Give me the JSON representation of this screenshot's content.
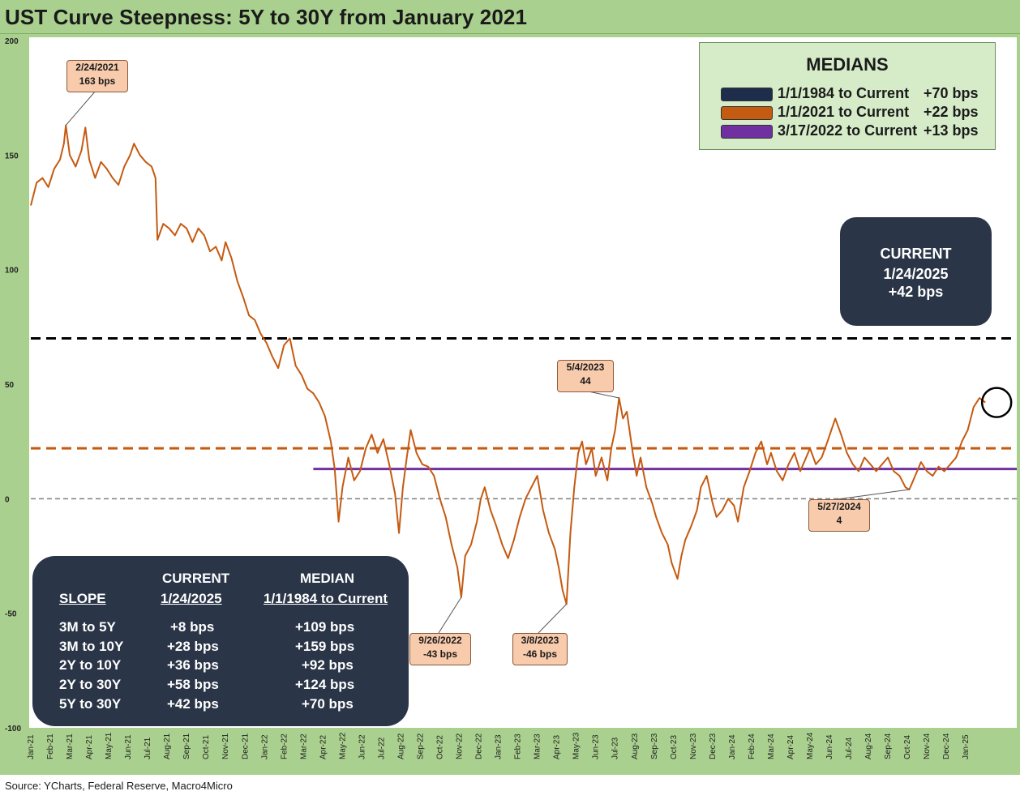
{
  "title": "UST Curve Steepness: 5Y to 30Y from January 2021",
  "source": "Source: YCharts, Federal Reserve, Macro4Micro",
  "colors": {
    "series": "#c55a11",
    "median_1984": "#000000",
    "median_2021": "#c55a11",
    "median_2022": "#7030a0",
    "zero_line": "#7f7f7f",
    "panel_green": "#a9d08e",
    "navy_box": "#2a3547",
    "callout_fill": "#f8cbad"
  },
  "legend": {
    "title": "MEDIANS",
    "items": [
      {
        "label": "1/1/1984 to Current",
        "value": "+70 bps",
        "color": "#1f2d4d"
      },
      {
        "label": "1/1/2021 to Current",
        "value": "+22 bps",
        "color": "#c55a11"
      },
      {
        "label": "3/17/2022 to Current",
        "value": "+13 bps",
        "color": "#7030a0"
      }
    ]
  },
  "current_box": {
    "line1": "CURRENT",
    "line2": "1/24/2025",
    "line3": "+42 bps"
  },
  "slope_table": {
    "header_slope": "SLOPE",
    "header_current_1": "CURRENT",
    "header_current_2": "1/24/2025",
    "header_median_1": "MEDIAN",
    "header_median_2": "1/1/1984 to Current",
    "rows": [
      {
        "slope": "3M to 5Y",
        "current": "+8  bps",
        "median": "+109 bps"
      },
      {
        "slope": "3M to 10Y",
        "current": "+28 bps",
        "median": "+159 bps"
      },
      {
        "slope": "2Y to 10Y",
        "current": "+36 bps",
        "median": "+92 bps"
      },
      {
        "slope": "2Y to 30Y",
        "current": "+58 bps",
        "median": "+124 bps"
      },
      {
        "slope": "5Y to 30Y",
        "current": "+42 bps",
        "median": "+70 bps"
      }
    ]
  },
  "callouts": [
    {
      "date": "2/24/2021",
      "value": "163 bps"
    },
    {
      "date": "5/4/2023",
      "value": "44"
    },
    {
      "date": "9/26/2022",
      "value": "-43 bps"
    },
    {
      "date": "3/8/2023",
      "value": "-46 bps"
    },
    {
      "date": "5/27/2024",
      "value": "4"
    }
  ],
  "chart_data": {
    "type": "line",
    "title": "UST Curve Steepness: 5Y to 30Y from January 2021",
    "ylabel": "bps",
    "ylim": [
      -100,
      200
    ],
    "yticks": [
      -100,
      -50,
      0,
      50,
      100,
      150,
      200
    ],
    "xlim": [
      0,
      49.2
    ],
    "x_unit": "months since Jan-2021",
    "categories": [
      "Jan-21",
      "Feb-21",
      "Mar-21",
      "Apr-21",
      "May-21",
      "Jun-21",
      "Jul-21",
      "Aug-21",
      "Sep-21",
      "Oct-21",
      "Nov-21",
      "Dec-21",
      "Jan-22",
      "Feb-22",
      "Mar-22",
      "Apr-22",
      "May-22",
      "Jun-22",
      "Jul-22",
      "Aug-22",
      "Sep-22",
      "Oct-22",
      "Nov-22",
      "Dec-22",
      "Jan-23",
      "Feb-23",
      "Mar-23",
      "Apr-23",
      "May-23",
      "Jun-23",
      "Jul-23",
      "Aug-23",
      "Sep-23",
      "Oct-23",
      "Nov-23",
      "Dec-23",
      "Jan-24",
      "Feb-24",
      "Mar-24",
      "Apr-24",
      "May-24",
      "Jun-24",
      "Jul-24",
      "Aug-24",
      "Sep-24",
      "Oct-24",
      "Nov-24",
      "Dec-24",
      "Jan-25"
    ],
    "reference_lines": [
      {
        "name": "Median 1/1/1984 to Current",
        "y": 70,
        "style": "dashed"
      },
      {
        "name": "Median 1/1/2021 to Current",
        "y": 22,
        "style": "dashed"
      },
      {
        "name": "Median 3/17/2022 to Current",
        "y": 13,
        "style": "solid",
        "x_start": 14.5
      },
      {
        "name": "Zero",
        "y": 0,
        "style": "dashed"
      }
    ],
    "series": [
      {
        "name": "5Y to 30Y spread (bps)",
        "points": [
          [
            0.0,
            128
          ],
          [
            0.3,
            138
          ],
          [
            0.6,
            140
          ],
          [
            0.9,
            136
          ],
          [
            1.2,
            144
          ],
          [
            1.5,
            148
          ],
          [
            1.7,
            155
          ],
          [
            1.8,
            163
          ],
          [
            2.0,
            150
          ],
          [
            2.3,
            145
          ],
          [
            2.6,
            152
          ],
          [
            2.8,
            162
          ],
          [
            3.0,
            148
          ],
          [
            3.3,
            140
          ],
          [
            3.6,
            147
          ],
          [
            3.9,
            144
          ],
          [
            4.2,
            140
          ],
          [
            4.5,
            137
          ],
          [
            4.8,
            145
          ],
          [
            5.1,
            150
          ],
          [
            5.3,
            155
          ],
          [
            5.6,
            150
          ],
          [
            5.9,
            147
          ],
          [
            6.2,
            145
          ],
          [
            6.4,
            140
          ],
          [
            6.5,
            113
          ],
          [
            6.8,
            120
          ],
          [
            7.1,
            118
          ],
          [
            7.4,
            115
          ],
          [
            7.7,
            120
          ],
          [
            8.0,
            118
          ],
          [
            8.3,
            112
          ],
          [
            8.6,
            118
          ],
          [
            8.9,
            115
          ],
          [
            9.2,
            108
          ],
          [
            9.5,
            110
          ],
          [
            9.8,
            104
          ],
          [
            10.0,
            112
          ],
          [
            10.3,
            105
          ],
          [
            10.6,
            95
          ],
          [
            10.9,
            88
          ],
          [
            11.2,
            80
          ],
          [
            11.5,
            78
          ],
          [
            11.8,
            72
          ],
          [
            12.1,
            68
          ],
          [
            12.4,
            62
          ],
          [
            12.7,
            57
          ],
          [
            13.0,
            67
          ],
          [
            13.3,
            70
          ],
          [
            13.6,
            58
          ],
          [
            13.9,
            54
          ],
          [
            14.2,
            48
          ],
          [
            14.5,
            46
          ],
          [
            14.8,
            42
          ],
          [
            15.1,
            36
          ],
          [
            15.4,
            25
          ],
          [
            15.6,
            13
          ],
          [
            15.8,
            -10
          ],
          [
            16.0,
            5
          ],
          [
            16.3,
            18
          ],
          [
            16.6,
            8
          ],
          [
            16.9,
            12
          ],
          [
            17.2,
            22
          ],
          [
            17.5,
            28
          ],
          [
            17.8,
            20
          ],
          [
            18.1,
            26
          ],
          [
            18.4,
            15
          ],
          [
            18.7,
            2
          ],
          [
            18.9,
            -15
          ],
          [
            19.1,
            5
          ],
          [
            19.3,
            18
          ],
          [
            19.5,
            30
          ],
          [
            19.8,
            20
          ],
          [
            20.1,
            15
          ],
          [
            20.4,
            14
          ],
          [
            20.7,
            10
          ],
          [
            21.0,
            0
          ],
          [
            21.3,
            -8
          ],
          [
            21.6,
            -20
          ],
          [
            21.9,
            -30
          ],
          [
            22.1,
            -43
          ],
          [
            22.3,
            -25
          ],
          [
            22.6,
            -20
          ],
          [
            22.9,
            -10
          ],
          [
            23.1,
            0
          ],
          [
            23.3,
            5
          ],
          [
            23.6,
            -5
          ],
          [
            23.9,
            -12
          ],
          [
            24.2,
            -20
          ],
          [
            24.5,
            -26
          ],
          [
            24.8,
            -18
          ],
          [
            25.1,
            -8
          ],
          [
            25.4,
            0
          ],
          [
            25.7,
            5
          ],
          [
            26.0,
            10
          ],
          [
            26.3,
            -5
          ],
          [
            26.6,
            -15
          ],
          [
            26.9,
            -22
          ],
          [
            27.1,
            -30
          ],
          [
            27.3,
            -40
          ],
          [
            27.5,
            -46
          ],
          [
            27.7,
            -15
          ],
          [
            27.9,
            5
          ],
          [
            28.1,
            20
          ],
          [
            28.3,
            25
          ],
          [
            28.5,
            15
          ],
          [
            28.8,
            22
          ],
          [
            29.0,
            10
          ],
          [
            29.3,
            18
          ],
          [
            29.6,
            8
          ],
          [
            29.8,
            22
          ],
          [
            30.0,
            30
          ],
          [
            30.2,
            44
          ],
          [
            30.4,
            35
          ],
          [
            30.6,
            38
          ],
          [
            30.9,
            20
          ],
          [
            31.1,
            10
          ],
          [
            31.3,
            18
          ],
          [
            31.6,
            5
          ],
          [
            31.9,
            -2
          ],
          [
            32.1,
            -8
          ],
          [
            32.4,
            -15
          ],
          [
            32.7,
            -20
          ],
          [
            32.9,
            -28
          ],
          [
            33.2,
            -35
          ],
          [
            33.4,
            -25
          ],
          [
            33.6,
            -18
          ],
          [
            33.9,
            -12
          ],
          [
            34.2,
            -5
          ],
          [
            34.4,
            5
          ],
          [
            34.7,
            10
          ],
          [
            35.0,
            -2
          ],
          [
            35.2,
            -8
          ],
          [
            35.5,
            -5
          ],
          [
            35.8,
            0
          ],
          [
            36.1,
            -3
          ],
          [
            36.3,
            -10
          ],
          [
            36.6,
            5
          ],
          [
            36.9,
            12
          ],
          [
            37.2,
            20
          ],
          [
            37.5,
            25
          ],
          [
            37.8,
            15
          ],
          [
            38.0,
            20
          ],
          [
            38.3,
            12
          ],
          [
            38.6,
            8
          ],
          [
            38.9,
            15
          ],
          [
            39.2,
            20
          ],
          [
            39.5,
            12
          ],
          [
            39.8,
            18
          ],
          [
            40.0,
            22
          ],
          [
            40.3,
            15
          ],
          [
            40.6,
            18
          ],
          [
            40.9,
            25
          ],
          [
            41.1,
            30
          ],
          [
            41.3,
            35
          ],
          [
            41.6,
            28
          ],
          [
            41.9,
            20
          ],
          [
            42.2,
            15
          ],
          [
            42.5,
            12
          ],
          [
            42.8,
            18
          ],
          [
            43.1,
            15
          ],
          [
            43.4,
            12
          ],
          [
            43.7,
            15
          ],
          [
            44.0,
            18
          ],
          [
            44.3,
            12
          ],
          [
            44.6,
            10
          ],
          [
            44.9,
            5
          ],
          [
            45.1,
            4
          ],
          [
            45.4,
            10
          ],
          [
            45.7,
            16
          ],
          [
            46.0,
            12
          ],
          [
            46.3,
            10
          ],
          [
            46.6,
            14
          ],
          [
            46.9,
            12
          ],
          [
            47.2,
            15
          ],
          [
            47.5,
            18
          ],
          [
            47.8,
            25
          ],
          [
            48.1,
            30
          ],
          [
            48.4,
            40
          ],
          [
            48.7,
            44
          ],
          [
            49.0,
            42
          ]
        ]
      }
    ]
  }
}
